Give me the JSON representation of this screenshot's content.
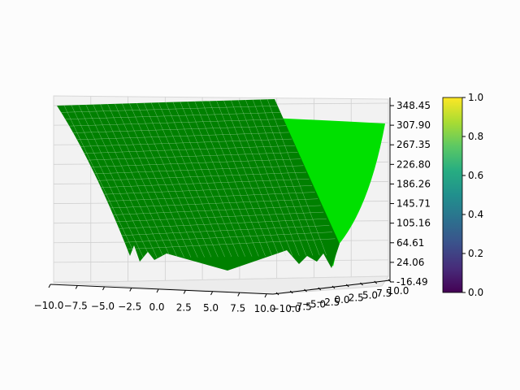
{
  "chart_data": {
    "type": "surface",
    "title": "",
    "xlabel": "",
    "ylabel": "",
    "zlabel": "",
    "x_ticks": [
      "−10.0",
      "−7.5",
      "−5.0",
      "−2.5",
      "0.0",
      "2.5",
      "5.0",
      "7.5",
      "10.0"
    ],
    "y_ticks": [
      "−10.0",
      "−7.5",
      "−5.0",
      "−2.5",
      "0.0",
      "2.5",
      "5.0",
      "7.5",
      "10.0"
    ],
    "z_ticks": [
      "348.45",
      "307.90",
      "267.35",
      "226.80",
      "186.26",
      "145.71",
      "105.16",
      "64.61",
      "24.06",
      "-16.49"
    ],
    "xlim": [
      -10,
      10
    ],
    "ylim": [
      -10,
      10
    ],
    "zlim": [
      -16.49,
      348.45
    ],
    "grid": true,
    "series": [
      {
        "color": "#008000"
      },
      {
        "color": "#00e000"
      }
    ],
    "colorbar": {
      "colormap": "viridis",
      "ticks": [
        "1.0",
        "0.8",
        "0.6",
        "0.4",
        "0.2",
        "0.0"
      ],
      "range": [
        0,
        1
      ]
    }
  }
}
